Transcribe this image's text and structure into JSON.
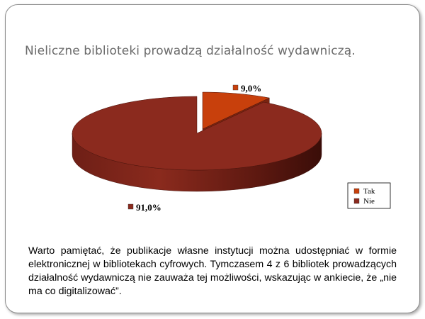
{
  "slide": {
    "title": "Nieliczne biblioteki prowadzą działalność wydawniczą.",
    "body_text": "Warto pamiętać, że publikacje własne instytucji można udostępniać w formie elektronicznej w bibliotekach cyfrowych. Tymczasem 4 z 6 bibliotek prowadzących działalność wydawniczą nie zauważa tej możliwości, wskazując w ankiecie, że „nie ma co digitalizować”."
  },
  "chart_data": {
    "type": "pie",
    "style": "3d",
    "categories": [
      "Tak",
      "Nie"
    ],
    "values": [
      9.0,
      91.0
    ],
    "data_labels": [
      "9,0%",
      "91,0%"
    ],
    "colors": [
      "#c8400c",
      "#8b2a1e"
    ],
    "legend": {
      "position": "right",
      "entries": [
        "Tak",
        "Nie"
      ]
    },
    "exploded": "Tak"
  }
}
